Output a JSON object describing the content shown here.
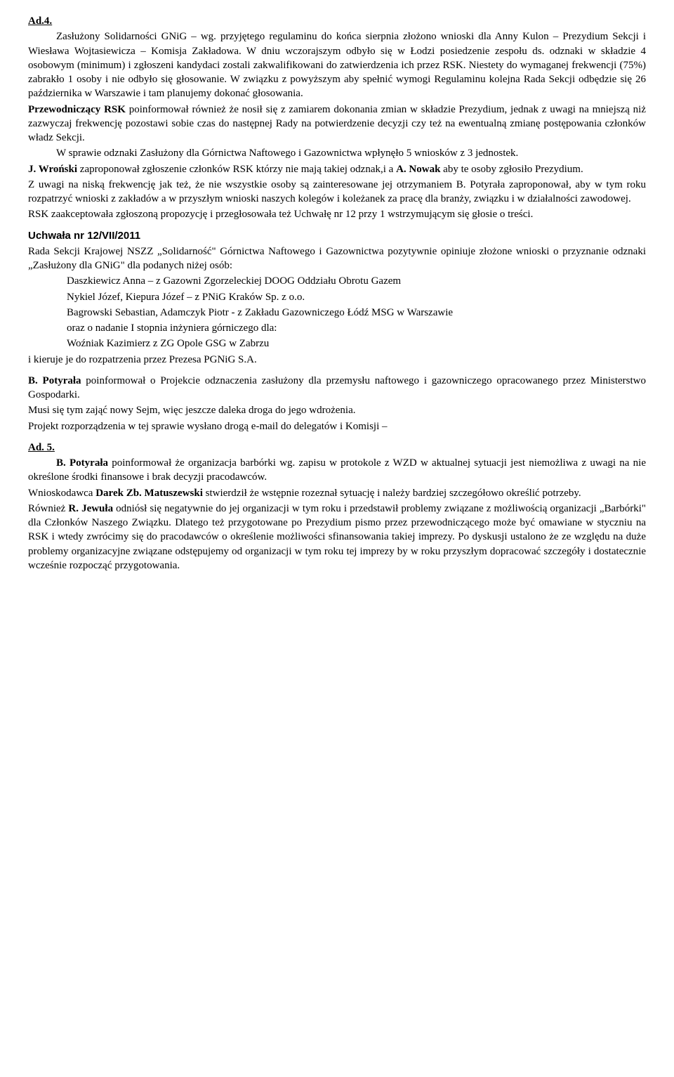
{
  "ad4": {
    "heading": "Ad.4.",
    "p1": "Zasłużony Solidarności GNiG – wg. przyjętego regulaminu do końca sierpnia złożono wnioski dla Anny Kulon – Prezydium Sekcji i Wiesława Wojtasiewicza – Komisja Zakładowa. W dniu wczorajszym odbyło się w Łodzi posiedzenie zespołu ds. odznaki w składzie 4 osobowym (minimum) i zgłoszeni kandydaci zostali zakwalifikowani do zatwierdzenia ich przez RSK. Niestety do wymaganej frekwencji (75%) zabrakło 1 osoby i nie odbyło się głosowanie. W związku z powyższym aby spełnić wymogi Regulaminu kolejna Rada Sekcji odbędzie się 26 października w Warszawie i tam planujemy dokonać głosowania.",
    "p2a": "Przewodniczący RSK",
    "p2b": " poinformował również że nosił się z zamiarem dokonania zmian w składzie Prezydium, jednak z uwagi na mniejszą niż zazwyczaj frekwencję pozostawi sobie czas do następnej Rady na potwierdzenie decyzji czy też na ewentualną zmianę postępowania członków władz Sekcji.",
    "p3": "W sprawie odznaki Zasłużony dla Górnictwa Naftowego i Gazownictwa wpłynęło 5 wniosków z 3 jednostek.",
    "p4a": "J. Wroński",
    "p4b": " zaproponował zgłoszenie członków RSK którzy nie mają takiej odznak,i a ",
    "p4c": "A. Nowak",
    "p4d": " aby te osoby zgłosiło Prezydium.",
    "p5": "Z uwagi na niską frekwencję jak też, że nie wszystkie osoby są zainteresowane jej otrzymaniem B. Potyrała zaproponował, aby w tym roku rozpatrzyć wnioski z zakładów a w przyszłym wnioski naszych kolegów i koleżanek za pracę dla branży, związku i w działalności zawodowej.",
    "p6": "RSK zaakceptowała zgłoszoną propozycję i przegłosowała też Uchwałę nr 12 przy 1 wstrzymującym się głosie o treści."
  },
  "uchwala": {
    "title": "Uchwała nr 12/VII/2011",
    "p1": "Rada Sekcji Krajowej NSZZ „Solidarność\" Górnictwa Naftowego i Gazownictwa pozytywnie opiniuje złożone wnioski o przyznanie odznaki „Zasłużony dla GNiG\" dla podanych niżej osób:",
    "l1": "Daszkiewicz Anna – z Gazowni Zgorzeleckiej DOOG Oddziału Obrotu Gazem",
    "l2": "Nykiel Józef, Kiepura Józef – z PNiG Kraków Sp. z o.o.",
    "l3": "Bagrowski Sebastian, Adamczyk Piotr - z Zakładu Gazowniczego Łódź MSG w Warszawie",
    "l4": "oraz o nadanie I stopnia  inżyniera górniczego dla:",
    "l5": "Woźniak Kazimierz z ZG Opole GSG w Zabrzu",
    "p2": "i kieruje je do rozpatrzenia przez Prezesa PGNiG S.A.",
    "p3a": "B. Potyrała",
    "p3b": " poinformował o Projekcie odznaczenia zasłużony dla przemysłu naftowego i gazowniczego opracowanego przez Ministerstwo Gospodarki.",
    "p4": "Musi się tym zająć nowy Sejm, więc jeszcze daleka droga do jego wdrożenia.",
    "p5": "Projekt rozporządzenia w tej sprawie wysłano drogą e-mail do delegatów i Komisji –"
  },
  "ad5": {
    "heading": "Ad. 5.",
    "p1a": "B. Potyrała",
    "p1b": " poinformował że organizacja barbórki wg. zapisu w protokole z WZD w aktualnej sytuacji jest niemożliwa z uwagi na nie określone środki finansowe i brak decyzji pracodawców.",
    "p2a": "Wnioskodawca ",
    "p2b": "Darek Zb. Matuszewski",
    "p2c": " stwierdził że wstępnie rozeznał sytuację i należy bardziej szczegółowo określić potrzeby.",
    "p3a": "Również ",
    "p3b": "R. Jewuła",
    "p3c": " odniósł się negatywnie do jej organizacji w tym roku i przedstawił problemy związane z możliwością organizacji „Barbórki\" dla Członków Naszego Związku. Dlatego też przygotowane po Prezydium pismo przez przewodniczącego może być omawiane w styczniu na RSK i wtedy zwrócimy się do pracodawców o określenie możliwości sfinansowania takiej imprezy. Po dyskusji ustalono że ze względu na duże problemy organizacyjne związane odstępujemy od organizacji w tym roku tej imprezy by w roku przyszłym dopracować szczegóły i dostatecznie wcześnie rozpocząć przygotowania."
  }
}
